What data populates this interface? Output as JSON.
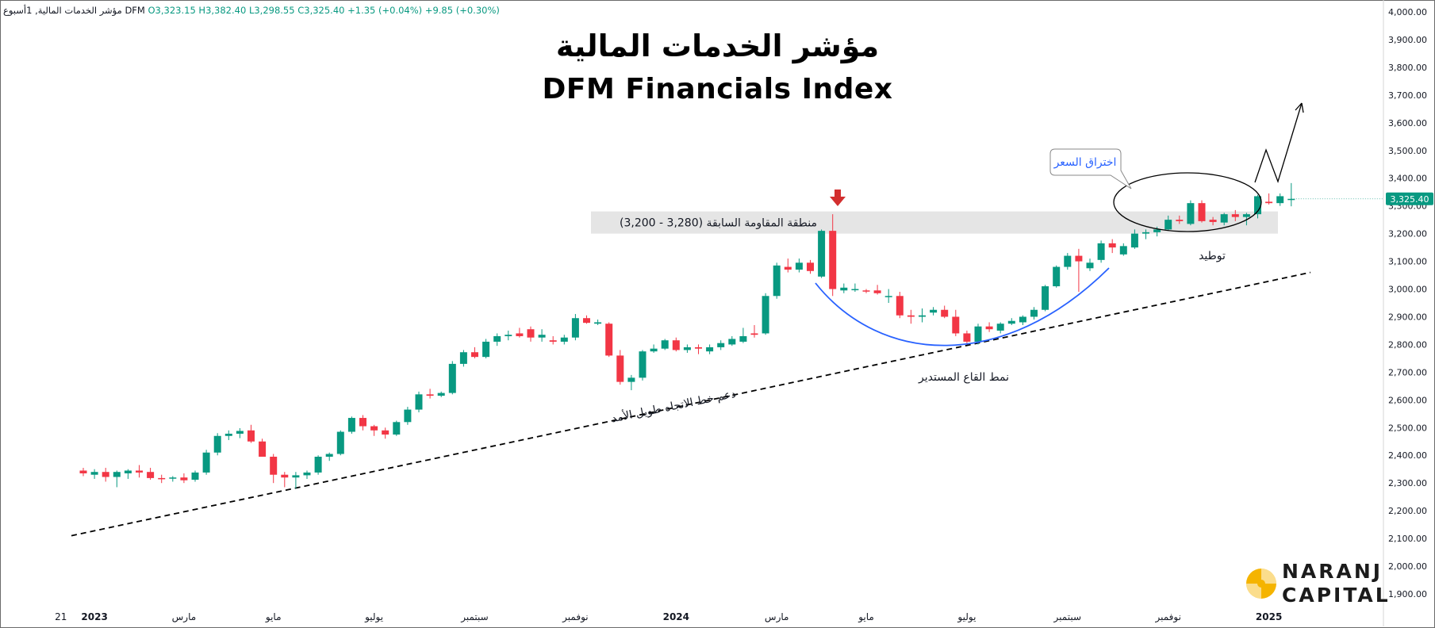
{
  "header": {
    "symbol_line": "مؤشر الخدمات المالية, 1أسبوع",
    "exchange": "DFM",
    "open": "O3,323.15",
    "high": "H3,382.40",
    "low": "L3,298.55",
    "close": "C3,325.40",
    "change": "+1.35 (+0.04%)",
    "change2": "+9.85 (+0.30%)"
  },
  "title_ar": "مؤشر الخدمات المالية",
  "title_en": "DFM Financials Index",
  "price_label": "3,325.40",
  "logo": {
    "line1": "NARANJ",
    "line2": "CAPITAL"
  },
  "annotations": {
    "resistance": "منطقة المقاومة السابقة (3,280 - 3,200)",
    "breakout": "اختراق السعر",
    "consolidation": "توطيد",
    "rounding_bottom": "نمط القاع المستدير",
    "trendline": "دعم خط الاتجاه طويل الأمد"
  },
  "colors": {
    "up": "#089981",
    "down": "#f23645",
    "curve": "#2962ff",
    "arrow": "#d32f2f",
    "zone": "#e0e0e0"
  },
  "chart_data": {
    "type": "candlestick",
    "title": "DFM Financials Index",
    "yaxis": {
      "range": [
        1850,
        4030
      ],
      "ticks": [
        "4,000.00",
        "3,900.00",
        "3,800.00",
        "3,700.00",
        "3,600.00",
        "3,500.00",
        "3,400.00",
        "3,300.00",
        "3,200.00",
        "3,100.00",
        "3,000.00",
        "2,900.00",
        "2,800.00",
        "2,700.00",
        "2,600.00",
        "2,500.00",
        "2,400.00",
        "2,300.00",
        "2,200.00",
        "2,100.00",
        "2,000.00",
        "1,900.00"
      ],
      "tick_values": [
        4000,
        3900,
        3800,
        3700,
        3600,
        3500,
        3400,
        3300,
        3200,
        3100,
        3000,
        2900,
        2800,
        2700,
        2600,
        2500,
        2400,
        2300,
        2200,
        2100,
        2000,
        1900
      ]
    },
    "xaxis": {
      "labels": [
        {
          "text": "21",
          "week": -2,
          "bold": false
        },
        {
          "text": "2023",
          "week": 1,
          "bold": true
        },
        {
          "text": "مارس",
          "week": 9,
          "bold": false
        },
        {
          "text": "مايو",
          "week": 17,
          "bold": false
        },
        {
          "text": "يوليو",
          "week": 26,
          "bold": false
        },
        {
          "text": "سبتمبر",
          "week": 35,
          "bold": false
        },
        {
          "text": "نوفمبر",
          "week": 44,
          "bold": false
        },
        {
          "text": "2024",
          "week": 53,
          "bold": true
        },
        {
          "text": "مارس",
          "week": 62,
          "bold": false
        },
        {
          "text": "مايو",
          "week": 70,
          "bold": false
        },
        {
          "text": "يوليو",
          "week": 79,
          "bold": false
        },
        {
          "text": "سبتمبر",
          "week": 88,
          "bold": false
        },
        {
          "text": "نوفمبر",
          "week": 97,
          "bold": false
        },
        {
          "text": "2025",
          "week": 106,
          "bold": true
        }
      ]
    },
    "candles": [
      [
        2345,
        2355,
        2325,
        2335
      ],
      [
        2330,
        2350,
        2315,
        2340
      ],
      [
        2340,
        2355,
        2305,
        2322
      ],
      [
        2322,
        2345,
        2285,
        2340
      ],
      [
        2335,
        2350,
        2315,
        2345
      ],
      [
        2345,
        2365,
        2320,
        2338
      ],
      [
        2340,
        2355,
        2312,
        2318
      ],
      [
        2318,
        2330,
        2300,
        2315
      ],
      [
        2316,
        2325,
        2305,
        2320
      ],
      [
        2320,
        2335,
        2300,
        2310
      ],
      [
        2312,
        2345,
        2305,
        2338
      ],
      [
        2338,
        2420,
        2330,
        2410
      ],
      [
        2410,
        2480,
        2400,
        2470
      ],
      [
        2470,
        2490,
        2455,
        2478
      ],
      [
        2478,
        2498,
        2462,
        2488
      ],
      [
        2490,
        2510,
        2445,
        2450
      ],
      [
        2450,
        2460,
        2395,
        2395
      ],
      [
        2395,
        2405,
        2300,
        2330
      ],
      [
        2330,
        2340,
        2285,
        2320
      ],
      [
        2320,
        2340,
        2280,
        2328
      ],
      [
        2328,
        2345,
        2315,
        2338
      ],
      [
        2338,
        2400,
        2330,
        2395
      ],
      [
        2395,
        2410,
        2380,
        2405
      ],
      [
        2405,
        2490,
        2400,
        2485
      ],
      [
        2485,
        2540,
        2478,
        2535
      ],
      [
        2535,
        2545,
        2490,
        2505
      ],
      [
        2505,
        2510,
        2470,
        2490
      ],
      [
        2490,
        2500,
        2460,
        2475
      ],
      [
        2475,
        2525,
        2470,
        2520
      ],
      [
        2520,
        2575,
        2510,
        2565
      ],
      [
        2565,
        2630,
        2555,
        2620
      ],
      [
        2620,
        2640,
        2605,
        2615
      ],
      [
        2615,
        2630,
        2610,
        2625
      ],
      [
        2625,
        2740,
        2620,
        2730
      ],
      [
        2730,
        2780,
        2720,
        2772
      ],
      [
        2772,
        2790,
        2750,
        2755
      ],
      [
        2755,
        2820,
        2750,
        2810
      ],
      [
        2810,
        2840,
        2795,
        2830
      ],
      [
        2830,
        2850,
        2815,
        2835
      ],
      [
        2840,
        2860,
        2825,
        2830
      ],
      [
        2855,
        2865,
        2810,
        2825
      ],
      [
        2825,
        2855,
        2810,
        2835
      ],
      [
        2815,
        2830,
        2800,
        2810
      ],
      [
        2810,
        2835,
        2800,
        2825
      ],
      [
        2825,
        2910,
        2815,
        2895
      ],
      [
        2895,
        2905,
        2875,
        2878
      ],
      [
        2875,
        2890,
        2870,
        2880
      ],
      [
        2875,
        2880,
        2755,
        2760
      ],
      [
        2760,
        2780,
        2655,
        2665
      ],
      [
        2665,
        2690,
        2635,
        2680
      ],
      [
        2680,
        2780,
        2670,
        2775
      ],
      [
        2775,
        2800,
        2770,
        2785
      ],
      [
        2785,
        2820,
        2780,
        2815
      ],
      [
        2815,
        2825,
        2775,
        2780
      ],
      [
        2780,
        2800,
        2770,
        2790
      ],
      [
        2790,
        2800,
        2765,
        2785
      ],
      [
        2775,
        2800,
        2765,
        2790
      ],
      [
        2790,
        2815,
        2780,
        2805
      ],
      [
        2800,
        2830,
        2795,
        2820
      ],
      [
        2810,
        2860,
        2805,
        2830
      ],
      [
        2840,
        2870,
        2825,
        2835
      ],
      [
        2840,
        2985,
        2835,
        2975
      ],
      [
        2975,
        3095,
        2965,
        3085
      ],
      [
        3080,
        3110,
        3060,
        3070
      ],
      [
        3070,
        3110,
        3060,
        3095
      ],
      [
        3095,
        3105,
        3055,
        3065
      ],
      [
        3045,
        3215,
        3040,
        3210
      ],
      [
        3210,
        3270,
        2975,
        3000
      ],
      [
        2995,
        3020,
        2985,
        3005
      ],
      [
        3000,
        3020,
        2990,
        3000
      ],
      [
        2995,
        3000,
        2985,
        2993
      ],
      [
        2995,
        3015,
        2980,
        2985
      ],
      [
        2975,
        3000,
        2950,
        2975
      ],
      [
        2975,
        2990,
        2895,
        2905
      ],
      [
        2905,
        2925,
        2875,
        2900
      ],
      [
        2900,
        2930,
        2880,
        2905
      ],
      [
        2915,
        2935,
        2905,
        2925
      ],
      [
        2925,
        2940,
        2895,
        2900
      ],
      [
        2900,
        2925,
        2830,
        2840
      ],
      [
        2840,
        2850,
        2800,
        2810
      ],
      [
        2810,
        2875,
        2800,
        2865
      ],
      [
        2865,
        2880,
        2845,
        2855
      ],
      [
        2850,
        2880,
        2840,
        2875
      ],
      [
        2875,
        2895,
        2870,
        2885
      ],
      [
        2880,
        2905,
        2870,
        2900
      ],
      [
        2900,
        2935,
        2890,
        2925
      ],
      [
        2925,
        3015,
        2920,
        3010
      ],
      [
        3010,
        3085,
        3005,
        3080
      ],
      [
        3080,
        3130,
        3070,
        3120
      ],
      [
        3120,
        3145,
        2990,
        3100
      ],
      [
        3075,
        3110,
        3065,
        3095
      ],
      [
        3105,
        3175,
        3095,
        3165
      ],
      [
        3165,
        3180,
        3130,
        3150
      ],
      [
        3125,
        3165,
        3120,
        3155
      ],
      [
        3150,
        3215,
        3145,
        3200
      ],
      [
        3200,
        3215,
        3180,
        3205
      ],
      [
        3205,
        3225,
        3190,
        3215
      ],
      [
        3215,
        3265,
        3210,
        3250
      ],
      [
        3250,
        3265,
        3235,
        3245
      ],
      [
        3235,
        3320,
        3230,
        3310
      ],
      [
        3310,
        3320,
        3240,
        3245
      ],
      [
        3250,
        3260,
        3230,
        3242
      ],
      [
        3240,
        3275,
        3230,
        3270
      ],
      [
        3270,
        3285,
        3245,
        3260
      ],
      [
        3260,
        3275,
        3230,
        3270
      ],
      [
        3270,
        3340,
        3255,
        3335
      ],
      [
        3315,
        3345,
        3305,
        3310
      ],
      [
        3310,
        3345,
        3300,
        3335
      ],
      [
        3323.15,
        3382.4,
        3298.55,
        3325.4
      ]
    ]
  }
}
